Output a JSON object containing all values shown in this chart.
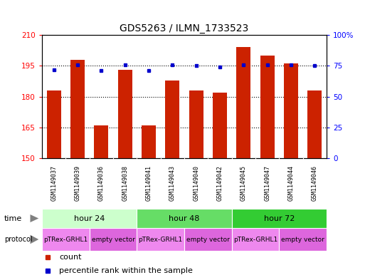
{
  "title": "GDS5263 / ILMN_1733523",
  "samples": [
    "GSM1149037",
    "GSM1149039",
    "GSM1149036",
    "GSM1149038",
    "GSM1149041",
    "GSM1149043",
    "GSM1149040",
    "GSM1149042",
    "GSM1149045",
    "GSM1149047",
    "GSM1149044",
    "GSM1149046"
  ],
  "counts": [
    183,
    198,
    166,
    193,
    166,
    188,
    183,
    182,
    204,
    200,
    196,
    183
  ],
  "percentile_ranks": [
    72,
    76,
    71,
    76,
    71,
    76,
    75,
    74,
    76,
    76,
    76,
    75
  ],
  "ylim_left": [
    150,
    210
  ],
  "ylim_right": [
    0,
    100
  ],
  "yticks_left": [
    150,
    165,
    180,
    195,
    210
  ],
  "yticks_right": [
    0,
    25,
    50,
    75,
    100
  ],
  "bar_color": "#cc2200",
  "dot_color": "#0000cc",
  "time_groups": [
    {
      "label": "hour 24",
      "start": 0,
      "end": 4,
      "color": "#ccffcc"
    },
    {
      "label": "hour 48",
      "start": 4,
      "end": 8,
      "color": "#66dd66"
    },
    {
      "label": "hour 72",
      "start": 8,
      "end": 12,
      "color": "#33cc33"
    }
  ],
  "protocol_groups": [
    {
      "label": "pTRex-GRHL1",
      "start": 0,
      "end": 2,
      "color": "#ee88ee"
    },
    {
      "label": "empty vector",
      "start": 2,
      "end": 4,
      "color": "#dd66dd"
    },
    {
      "label": "pTRex-GRHL1",
      "start": 4,
      "end": 6,
      "color": "#ee88ee"
    },
    {
      "label": "empty vector",
      "start": 6,
      "end": 8,
      "color": "#dd66dd"
    },
    {
      "label": "pTRex-GRHL1",
      "start": 8,
      "end": 10,
      "color": "#ee88ee"
    },
    {
      "label": "empty vector",
      "start": 10,
      "end": 12,
      "color": "#dd66dd"
    }
  ],
  "legend_items": [
    {
      "label": "count",
      "color": "#cc2200"
    },
    {
      "label": "percentile rank within the sample",
      "color": "#0000cc"
    }
  ],
  "sample_bg": "#cccccc",
  "background_color": "#ffffff"
}
